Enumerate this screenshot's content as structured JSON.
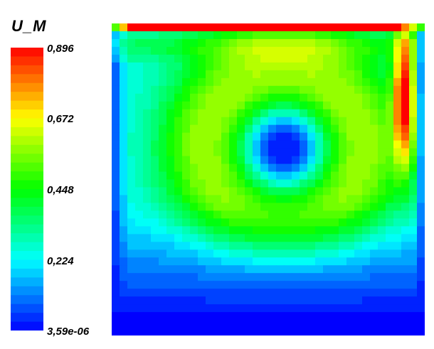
{
  "chart_data": {
    "type": "heatmap",
    "title": "U_M",
    "colorbar": {
      "min": 3.59e-06,
      "max": 0.896,
      "tick_labels": [
        "0,896",
        "0,672",
        "0,448",
        "0,224",
        "3,59e-06"
      ],
      "tick_values": [
        0.896,
        0.672,
        0.448,
        0.224,
        3.59e-06
      ],
      "colormap": "rainbow (blue-cyan-green-yellow-red)",
      "colors": [
        "#0000ff",
        "#00ffff",
        "#00ff00",
        "#ffff00",
        "#ff0000"
      ],
      "bands": 32
    },
    "grid": {
      "nx": 40,
      "ny": 40
    },
    "field_description_values": {
      "lid_max": 0.896,
      "vortex_core_min": 0.02,
      "ring_peak": 0.35,
      "right_wall_jet": 0.6,
      "bottom_min": 0.0
    }
  }
}
